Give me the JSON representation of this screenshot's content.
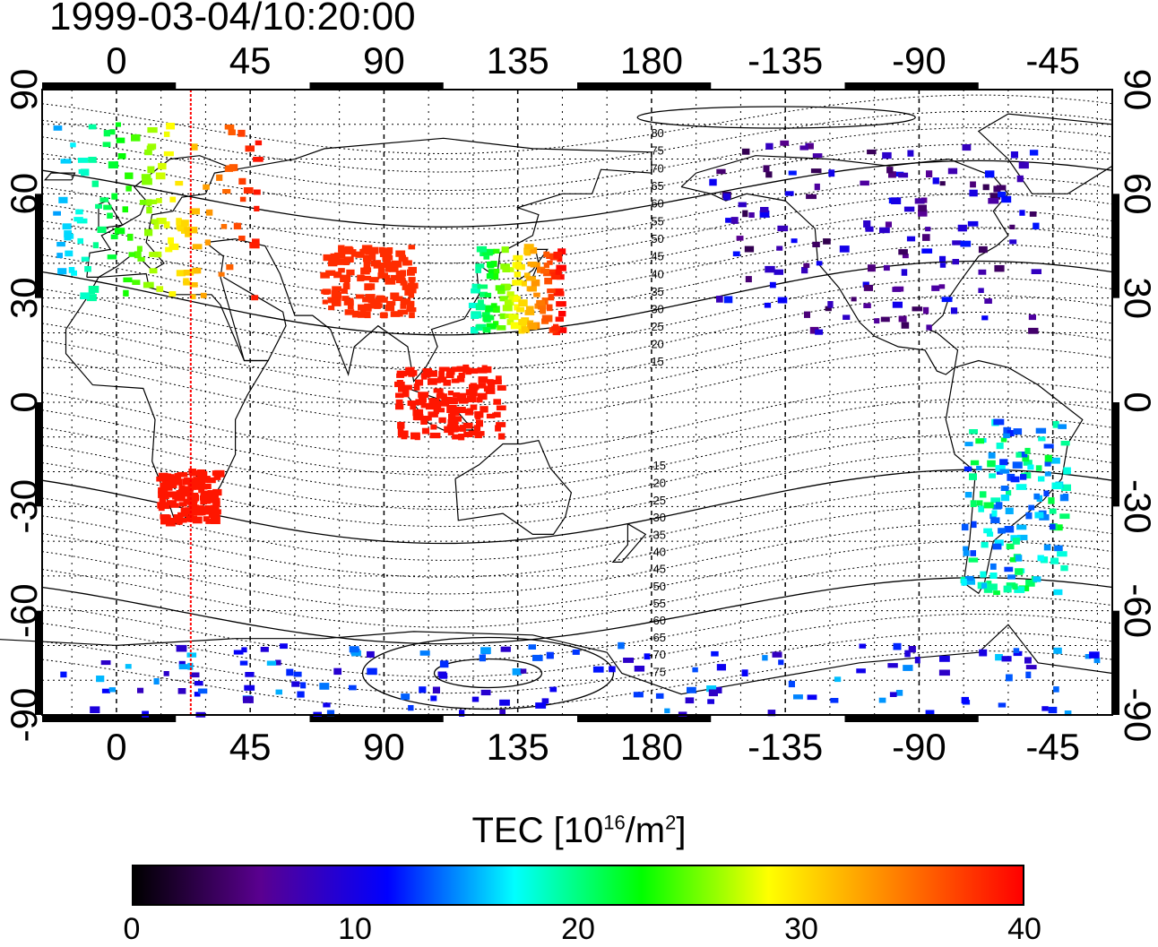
{
  "title": "1999-03-04/10:20:00",
  "map": {
    "x_ticks_top": [
      "0",
      "45",
      "90",
      "135",
      "180",
      "-135",
      "-90",
      "-45"
    ],
    "x_ticks_bottom": [
      "0",
      "45",
      "90",
      "135",
      "180",
      "-135",
      "-90",
      "-45"
    ],
    "y_ticks_left": [
      "90",
      "60",
      "30",
      "0",
      "-30",
      "-60",
      "-90"
    ],
    "y_ticks_right": [
      "90",
      "60",
      "30",
      "0",
      "-30",
      "-60",
      "-90"
    ],
    "contour_labels_north": [
      "80",
      "75",
      "70",
      "65",
      "60",
      "55",
      "50",
      "45",
      "40",
      "35",
      "30",
      "25",
      "20",
      "15"
    ],
    "contour_labels_south": [
      "-15",
      "-20",
      "-25",
      "-30",
      "-35",
      "-40",
      "-45",
      "-50",
      "-55",
      "-60",
      "-65",
      "-70",
      "-75"
    ],
    "marker_longitude": 25,
    "marker_color": "#ff0000"
  },
  "colorbar": {
    "label_main": "TEC  [10",
    "label_exp1": "16",
    "label_mid": "/m",
    "label_exp2": "2",
    "label_end": "]",
    "min": 0,
    "max": 40,
    "ticks": [
      "0",
      "10",
      "20",
      "30",
      "40"
    ],
    "colors": [
      "#000000",
      "#5a0090",
      "#0000ff",
      "#00ffff",
      "#00ff00",
      "#ffff00",
      "#ff8000",
      "#ff0000"
    ]
  },
  "chart_data": {
    "type": "heatmap",
    "title": "1999-03-04/10:20:00",
    "xlabel": "",
    "ylabel": "",
    "xlim": [
      -25,
      335
    ],
    "ylim": [
      -90,
      90
    ],
    "colorbar_label": "TEC [10^16/m^2]",
    "colorbar_range": [
      0,
      40
    ],
    "regions": [
      {
        "lon": [
          -20,
          50
        ],
        "lat": [
          30,
          80
        ],
        "tec_range": [
          15,
          40
        ]
      },
      {
        "lon": [
          70,
          100
        ],
        "lat": [
          25,
          45
        ],
        "tec": 38
      },
      {
        "lon": [
          120,
          150
        ],
        "lat": [
          20,
          45
        ],
        "tec_range": [
          18,
          40
        ]
      },
      {
        "lon": [
          95,
          130
        ],
        "lat": [
          -10,
          10
        ],
        "tec": 39
      },
      {
        "lon": [
          15,
          35
        ],
        "lat": [
          -35,
          -20
        ],
        "tec": 39
      },
      {
        "lon": [
          200,
          310
        ],
        "lat": [
          20,
          75
        ],
        "tec_range": [
          3,
          12
        ]
      },
      {
        "lon": [
          285,
          320
        ],
        "lat": [
          -55,
          -5
        ],
        "tec_range": [
          12,
          22
        ]
      },
      {
        "lon": [
          -20,
          330
        ],
        "lat": [
          -90,
          -70
        ],
        "tec_range": [
          8,
          16
        ]
      }
    ]
  }
}
